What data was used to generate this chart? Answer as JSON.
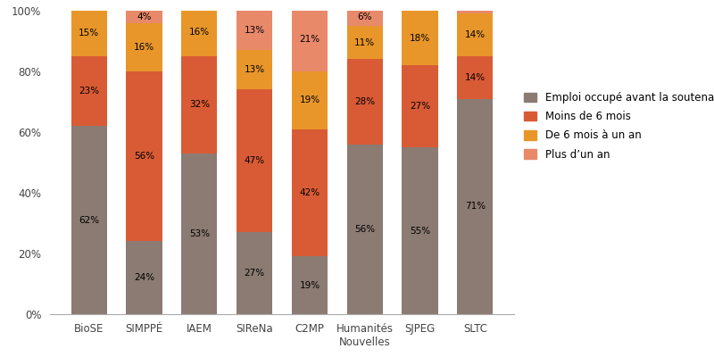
{
  "categories": [
    "BioSE",
    "SIMPPÉ",
    "IAEM",
    "SIReNa",
    "C2MP",
    "Humanités\nNouvelles",
    "SJPEG",
    "SLTC"
  ],
  "series": {
    "Emploi occupé avant la soutenance": [
      62,
      24,
      53,
      27,
      19,
      56,
      55,
      71
    ],
    "Moins de 6 mois": [
      23,
      56,
      32,
      47,
      42,
      28,
      27,
      14
    ],
    "De 6 mois à un an": [
      15,
      16,
      16,
      13,
      19,
      11,
      18,
      14
    ],
    "Plus d’un an": [
      0,
      4,
      0,
      13,
      21,
      6,
      0,
      1
    ]
  },
  "colors": {
    "Emploi occupé avant la soutenance": "#8B7B72",
    "Moins de 6 mois": "#D95B35",
    "De 6 mois à un an": "#E8962A",
    "Plus d’un an": "#E8896A"
  },
  "yticks": [
    0,
    20,
    40,
    60,
    80,
    100
  ],
  "ytick_labels": [
    "0%",
    "20%",
    "40%",
    "60%",
    "80%",
    "100%"
  ],
  "legend_labels": [
    "Emploi occupé avant la soutenance",
    "Moins de 6 mois",
    "De 6 mois à un an",
    "Plus d’un an"
  ],
  "background_color": "#ffffff",
  "bar_width": 0.65,
  "figsize": [
    8.0,
    4.0
  ],
  "dpi": 100
}
